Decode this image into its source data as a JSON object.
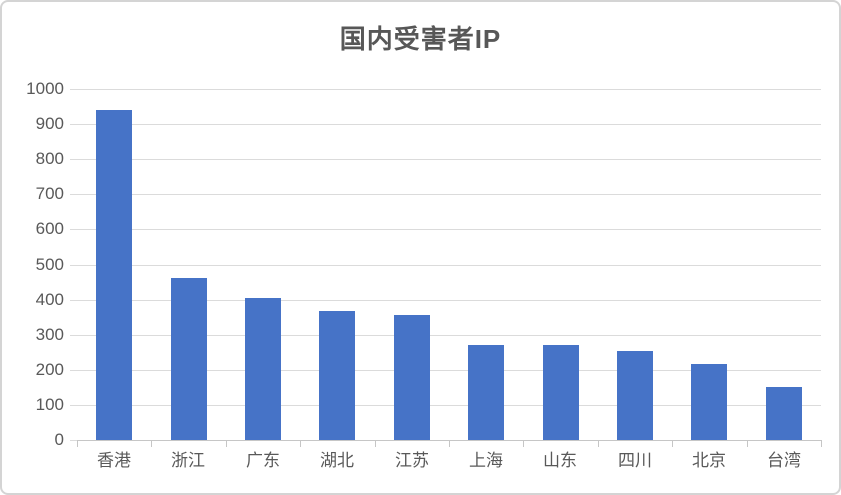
{
  "chart_data": {
    "type": "bar",
    "title": "国内受害者IP",
    "categories": [
      "香港",
      "浙江",
      "广东",
      "湖北",
      "江苏",
      "上海",
      "山东",
      "四川",
      "北京",
      "台湾"
    ],
    "values": [
      940,
      462,
      405,
      368,
      355,
      272,
      270,
      253,
      216,
      150
    ],
    "series_name": "国内受害者IP",
    "xlabel": "",
    "ylabel": "",
    "ylim": [
      0,
      1000
    ],
    "ytick_interval": 100,
    "yticks": [
      0,
      100,
      200,
      300,
      400,
      500,
      600,
      700,
      800,
      900,
      1000
    ],
    "grid": true,
    "legend_position": "none",
    "colors": {
      "bar": "#4673c7",
      "gridline": "#dbdbdb",
      "axis": "#c6c6c6",
      "axis_text": "#595959",
      "title_text": "#575757",
      "frame_border": "#d4d4d4",
      "background": "#ffffff"
    }
  }
}
